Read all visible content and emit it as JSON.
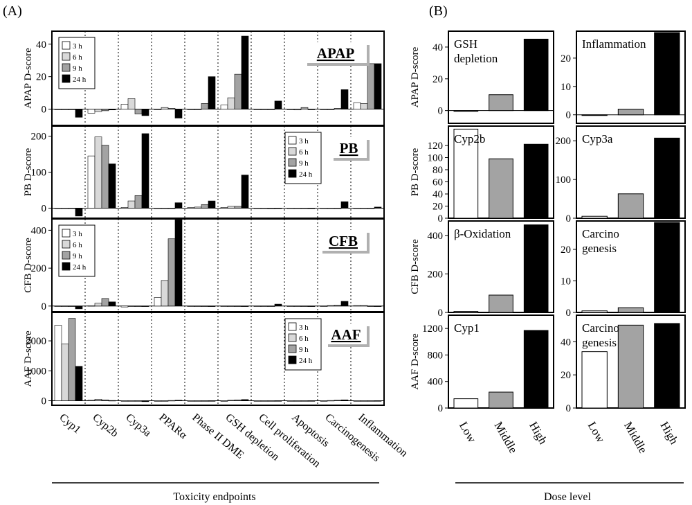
{
  "figure": {
    "panel_a_label": "(A)",
    "panel_b_label": "(B)",
    "panel_a_xlabel": "Toxicity endpoints",
    "panel_b_xlabel": "Dose level"
  },
  "colors": {
    "3 h": "#ffffff",
    "6 h": "#d9d9d9",
    "9 h": "#a3a3a3",
    "24 h": "#000000",
    "Low": "#ffffff",
    "Middle": "#a3a3a3",
    "High": "#000000",
    "stroke": "#000000"
  },
  "chart_data": [
    {
      "type": "bar",
      "panel": "A",
      "title": "APAP",
      "ylabel": "APAP D-score",
      "ylim": [
        -10,
        48
      ],
      "yticks": [
        0,
        20,
        40
      ],
      "legend": [
        "3 h",
        "6 h",
        "9 h",
        "24 h"
      ],
      "legend_position": "top-left",
      "categories": [
        "Cyp1",
        "Cyp2b",
        "Cyp3a",
        "PPARα",
        "Phase II DME",
        "GSH depletion",
        "Cell proliferation",
        "Apoptosis",
        "Carcinogenesis",
        "Inflammation"
      ],
      "series": [
        {
          "name": "3 h",
          "values": [
            0,
            -2.5,
            3,
            0,
            0,
            2.5,
            0,
            0,
            0,
            4
          ]
        },
        {
          "name": "6 h",
          "values": [
            0,
            -1.5,
            6.5,
            1,
            0,
            7,
            0,
            -0.5,
            0,
            3.5
          ]
        },
        {
          "name": "9 h",
          "values": [
            0,
            -1,
            -3,
            0.5,
            3.5,
            21.5,
            0,
            1,
            0.5,
            28
          ]
        },
        {
          "name": "24 h",
          "values": [
            -5,
            -0.5,
            -4,
            -5.5,
            20,
            45,
            5,
            0,
            12,
            28
          ]
        }
      ]
    },
    {
      "type": "bar",
      "panel": "A",
      "title": "PB",
      "ylabel": "PB D-score",
      "ylim": [
        -28,
        228
      ],
      "yticks": [
        0,
        100,
        200
      ],
      "legend": [
        "3 h",
        "6 h",
        "9 h",
        "24 h"
      ],
      "legend_position": "top-right",
      "categories": [
        "Cyp1",
        "Cyp2b",
        "Cyp3a",
        "PPARα",
        "Phase II DME",
        "GSH depletion",
        "Cell proliferation",
        "Apoptosis",
        "Carcinogenesis",
        "Inflammation"
      ],
      "series": [
        {
          "name": "3 h",
          "values": [
            0,
            145,
            2,
            0,
            2,
            2,
            0,
            0,
            0,
            0
          ]
        },
        {
          "name": "6 h",
          "values": [
            0,
            198,
            20,
            0,
            3,
            5,
            0,
            0,
            0,
            0
          ]
        },
        {
          "name": "9 h",
          "values": [
            0,
            175,
            35,
            0,
            10,
            5,
            -2,
            0,
            0,
            0
          ]
        },
        {
          "name": "24 h",
          "values": [
            -22,
            123,
            207,
            15,
            20,
            92,
            0,
            0,
            18,
            3
          ]
        }
      ]
    },
    {
      "type": "bar",
      "panel": "A",
      "title": "CFB",
      "ylabel": "CFB D-score",
      "ylim": [
        -30,
        460
      ],
      "yticks": [
        0,
        200,
        400
      ],
      "legend": [
        "3 h",
        "6 h",
        "9 h",
        "24 h"
      ],
      "legend_position": "top-left",
      "categories": [
        "Cyp1",
        "Cyp2b",
        "Cyp3a",
        "PPARα",
        "Phase II DME",
        "GSH depletion",
        "Cell proliferation",
        "Apoptosis",
        "Carcinogenesis",
        "Inflammation"
      ],
      "series": [
        {
          "name": "3 h",
          "values": [
            0,
            2,
            -5,
            45,
            0,
            0,
            0,
            0,
            0,
            3
          ]
        },
        {
          "name": "6 h",
          "values": [
            0,
            15,
            -3,
            135,
            0,
            0,
            0,
            0,
            3,
            3
          ]
        },
        {
          "name": "9 h",
          "values": [
            0,
            40,
            0,
            355,
            0,
            0,
            0,
            0,
            5,
            0
          ]
        },
        {
          "name": "24 h",
          "values": [
            -15,
            22,
            0,
            455,
            0,
            0,
            10,
            0,
            25,
            0
          ]
        }
      ]
    },
    {
      "type": "bar",
      "panel": "A",
      "title": "AAF",
      "ylabel": "AAF D-score",
      "ylim": [
        -150,
        2950
      ],
      "yticks": [
        0,
        1000,
        2000
      ],
      "legend": [
        "3 h",
        "6 h",
        "9 h",
        "24 h"
      ],
      "legend_position": "top-right",
      "categories": [
        "Cyp1",
        "Cyp2b",
        "Cyp3a",
        "PPARα",
        "Phase II DME",
        "GSH depletion",
        "Cell proliferation",
        "Apoptosis",
        "Carcinogenesis",
        "Inflammation"
      ],
      "series": [
        {
          "name": "3 h",
          "values": [
            2520,
            20,
            0,
            0,
            0,
            0,
            0,
            0,
            0,
            0
          ]
        },
        {
          "name": "6 h",
          "values": [
            1900,
            50,
            -10,
            0,
            0,
            20,
            0,
            0,
            10,
            0
          ]
        },
        {
          "name": "9 h",
          "values": [
            2750,
            30,
            -10,
            10,
            0,
            30,
            0,
            0,
            20,
            0
          ]
        },
        {
          "name": "24 h",
          "values": [
            1150,
            10,
            -30,
            20,
            0,
            40,
            0,
            0,
            30,
            0
          ]
        }
      ]
    },
    {
      "type": "bar",
      "panel": "B",
      "title": "APAP D-score",
      "ylabel": "APAP D-score",
      "annotation": "GSH\ndepletion",
      "categories": [
        "Low",
        "Middle",
        "High"
      ],
      "values": [
        0,
        10,
        45
      ],
      "ylim": [
        -8,
        50
      ],
      "yticks": [
        0,
        20,
        40
      ]
    },
    {
      "type": "bar",
      "panel": "B",
      "title": "APAP D-score",
      "ylabel": "",
      "annotation": "Inflammation",
      "categories": [
        "Low",
        "Middle",
        "High"
      ],
      "values": [
        0,
        2,
        29
      ],
      "ylim": [
        -3,
        29.5
      ],
      "yticks": [
        0,
        10,
        20
      ]
    },
    {
      "type": "bar",
      "panel": "B",
      "title": "PB D-score",
      "ylabel": "PB D-score",
      "annotation": "Cyp2b",
      "categories": [
        "Low",
        "Middle",
        "High"
      ],
      "values": [
        147,
        98,
        122
      ],
      "ylim": [
        0,
        152
      ],
      "yticks": [
        0,
        20,
        40,
        60,
        80,
        100,
        120
      ]
    },
    {
      "type": "bar",
      "panel": "B",
      "title": "PB D-score",
      "ylabel": "",
      "annotation": "Cyp3a",
      "categories": [
        "Low",
        "Middle",
        "High"
      ],
      "values": [
        5,
        63,
        207
      ],
      "ylim": [
        0,
        238
      ],
      "yticks": [
        0,
        100,
        200
      ]
    },
    {
      "type": "bar",
      "panel": "B",
      "title": "CFB D-score",
      "ylabel": "CFB D-score",
      "annotation": "β-Oxidation",
      "categories": [
        "Low",
        "Middle",
        "High"
      ],
      "values": [
        5,
        90,
        455
      ],
      "ylim": [
        0,
        475
      ],
      "yticks": [
        0,
        200,
        400
      ]
    },
    {
      "type": "bar",
      "panel": "B",
      "title": "CFB D-score",
      "ylabel": "",
      "annotation": "Carcino\ngenesis",
      "categories": [
        "Low",
        "Middle",
        "High"
      ],
      "values": [
        0.5,
        1.5,
        28.5
      ],
      "ylim": [
        0,
        29
      ],
      "yticks": [
        0,
        10,
        20
      ]
    },
    {
      "type": "bar",
      "panel": "B",
      "title": "AAF D-score",
      "ylabel": "AAF D-score",
      "annotation": "Cyp1",
      "categories": [
        "Low",
        "Middle",
        "High"
      ],
      "values": [
        140,
        240,
        1170
      ],
      "ylim": [
        0,
        1400
      ],
      "yticks": [
        0,
        400,
        800,
        1200
      ]
    },
    {
      "type": "bar",
      "panel": "B",
      "title": "AAF D-score",
      "ylabel": "",
      "annotation": "Carcino\ngenesis",
      "categories": [
        "Low",
        "Middle",
        "High"
      ],
      "values": [
        34,
        50,
        51
      ],
      "ylim": [
        0,
        56
      ],
      "yticks": [
        0,
        20,
        40
      ]
    }
  ]
}
